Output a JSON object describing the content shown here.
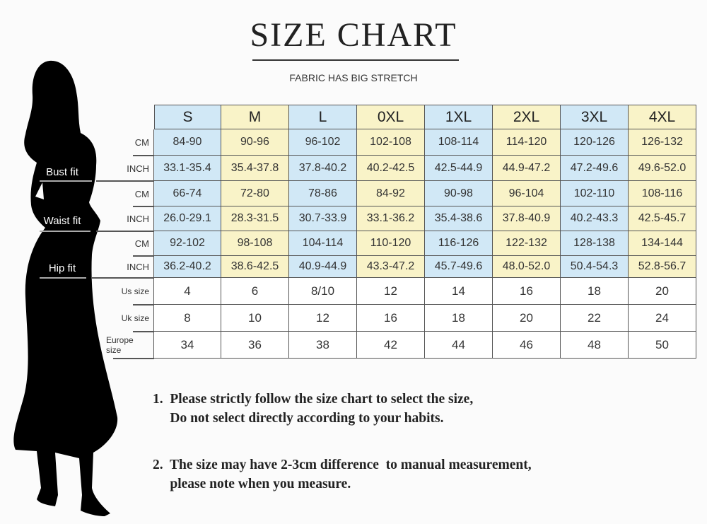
{
  "title": "SIZE CHART",
  "subtitle": "FABRIC HAS BIG STRETCH",
  "colors": {
    "blue": "#d1e8f6",
    "yellow": "#f9f3c8",
    "white": "#ffffff",
    "silhouette": "#000000"
  },
  "icons": {
    "silhouette": "woman-silhouette-icon"
  },
  "fit_labels": [
    "Bust fit",
    "Waist fit",
    "Hip fit"
  ],
  "sizes": [
    "S",
    "M",
    "L",
    "0XL",
    "1XL",
    "2XL",
    "3XL",
    "4XL"
  ],
  "rows": [
    {
      "label": "CM",
      "values": [
        "84-90",
        "90-96",
        "96-102",
        "102-108",
        "108-114",
        "114-120",
        "120-126",
        "126-132"
      ]
    },
    {
      "label": "INCH",
      "values": [
        "33.1-35.4",
        "35.4-37.8",
        "37.8-40.2",
        "40.2-42.5",
        "42.5-44.9",
        "44.9-47.2",
        "47.2-49.6",
        "49.6-52.0"
      ]
    },
    {
      "label": "CM",
      "values": [
        "66-74",
        "72-80",
        "78-86",
        "84-92",
        "90-98",
        "96-104",
        "102-110",
        "108-116"
      ]
    },
    {
      "label": "INCH",
      "values": [
        "26.0-29.1",
        "28.3-31.5",
        "30.7-33.9",
        "33.1-36.2",
        "35.4-38.6",
        "37.8-40.9",
        "40.2-43.3",
        "42.5-45.7"
      ]
    },
    {
      "label": "CM",
      "values": [
        "92-102",
        "98-108",
        "104-114",
        "110-120",
        "116-126",
        "122-132",
        "128-138",
        "134-144"
      ]
    },
    {
      "label": "INCH",
      "values": [
        "36.2-40.2",
        "38.6-42.5",
        "40.9-44.9",
        "43.3-47.2",
        "45.7-49.6",
        "48.0-52.0",
        "50.4-54.3",
        "52.8-56.7"
      ]
    },
    {
      "label": "Us size",
      "values": [
        "4",
        "6",
        "8/10",
        "12",
        "14",
        "16",
        "18",
        "20"
      ]
    },
    {
      "label": "Uk size",
      "values": [
        "8",
        "10",
        "12",
        "16",
        "18",
        "20",
        "22",
        "24"
      ]
    },
    {
      "label": "Europe size",
      "values": [
        "34",
        "36",
        "38",
        "42",
        "44",
        "46",
        "48",
        "50"
      ]
    }
  ],
  "notes": [
    "1.  Please strictly follow the size chart to select the size,\n     Do not select directly according to your habits.",
    "2.  The size may have 2-3cm difference  to manual measurement,\n     please note when you measure."
  ]
}
